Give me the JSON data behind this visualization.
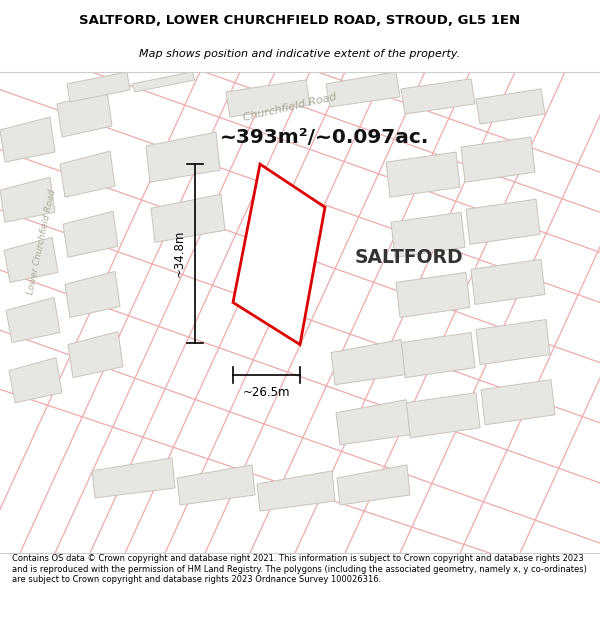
{
  "title": "SALTFORD, LOWER CHURCHFIELD ROAD, STROUD, GL5 1EN",
  "subtitle": "Map shows position and indicative extent of the property.",
  "area_text": "~393m²/~0.097ac.",
  "property_label": "SALTFORD",
  "dim_width": "~26.5m",
  "dim_height": "~34.8m",
  "footer": "Contains OS data © Crown copyright and database right 2021. This information is subject to Crown copyright and database rights 2023 and is reproduced with the permission of HM Land Registry. The polygons (including the associated geometry, namely x, y co-ordinates) are subject to Crown copyright and database rights 2023 Ordnance Survey 100026316.",
  "map_bg": "#f2f0ed",
  "road_line_color": "#f0aaaa",
  "building_face": "#e8e6e2",
  "building_edge": "#c8c4bc",
  "plot_line_color": "#dd0000",
  "road_label_color": "#aaa898",
  "title_fontsize": 9.5,
  "subtitle_fontsize": 8.0,
  "area_fontsize": 14.5,
  "label_fontsize": 13.5,
  "footer_fontsize": 6.0
}
